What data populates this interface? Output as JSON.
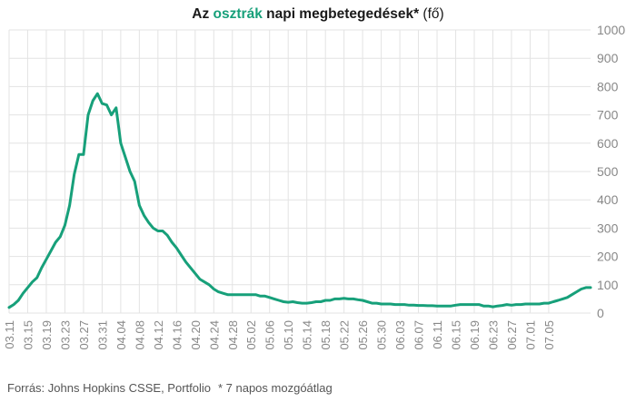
{
  "title": {
    "prefix": "Az ",
    "highlight": "osztrák",
    "main": " napi megbetegedések*",
    "suffix": " (fő)"
  },
  "footer": {
    "source": "Forrás: Johns Hopkins CSSE, Portfolio",
    "note": "* 7 napos mozgóátlag"
  },
  "colors": {
    "line": "#17a07a",
    "grid": "#e3e3e3",
    "highlight": "#17a07a",
    "axis_text": "#888888"
  },
  "chart_data": {
    "type": "line",
    "title": "Az osztrák napi megbetegedések* (fő)",
    "y_axis_position": "right",
    "ylim": [
      0,
      1000
    ],
    "yticks": [
      0,
      100,
      200,
      300,
      400,
      500,
      600,
      700,
      800,
      900,
      1000
    ],
    "grid": true,
    "x_tick_labels": [
      "03.11",
      "03.15",
      "03.19",
      "03.23",
      "03.27",
      "03.31",
      "04.04",
      "04.08",
      "04.12",
      "04.16",
      "04.20",
      "04.24",
      "04.28",
      "05.02",
      "05.06",
      "05.10",
      "05.14",
      "05.18",
      "05.22",
      "05.26",
      "05.30",
      "06.03",
      "06.07",
      "06.11",
      "06.15",
      "06.19",
      "06.23",
      "06.27",
      "07.01",
      "07.05"
    ],
    "series": [
      {
        "values": [
          20,
          30,
          45,
          70,
          90,
          110,
          125,
          160,
          190,
          220,
          250,
          270,
          310,
          380,
          490,
          560,
          560,
          700,
          750,
          775,
          740,
          735,
          700,
          725,
          600,
          550,
          500,
          465,
          380,
          345,
          320,
          300,
          290,
          290,
          275,
          250,
          230,
          205,
          180,
          160,
          140,
          120,
          110,
          100,
          85,
          75,
          70,
          65,
          65,
          65,
          65,
          65,
          65,
          65,
          60,
          60,
          55,
          50,
          45,
          40,
          38,
          40,
          37,
          35,
          35,
          37,
          40,
          40,
          45,
          45,
          50,
          50,
          52,
          50,
          50,
          47,
          45,
          40,
          35,
          35,
          32,
          32,
          32,
          30,
          30,
          30,
          28,
          28,
          27,
          27,
          26,
          26,
          25,
          25,
          25,
          25,
          28,
          30,
          30,
          30,
          30,
          30,
          25,
          25,
          22,
          25,
          27,
          30,
          28,
          30,
          30,
          32,
          32,
          32,
          32,
          35,
          35,
          40,
          45,
          50,
          55,
          65,
          75,
          85,
          90,
          90
        ]
      }
    ]
  }
}
